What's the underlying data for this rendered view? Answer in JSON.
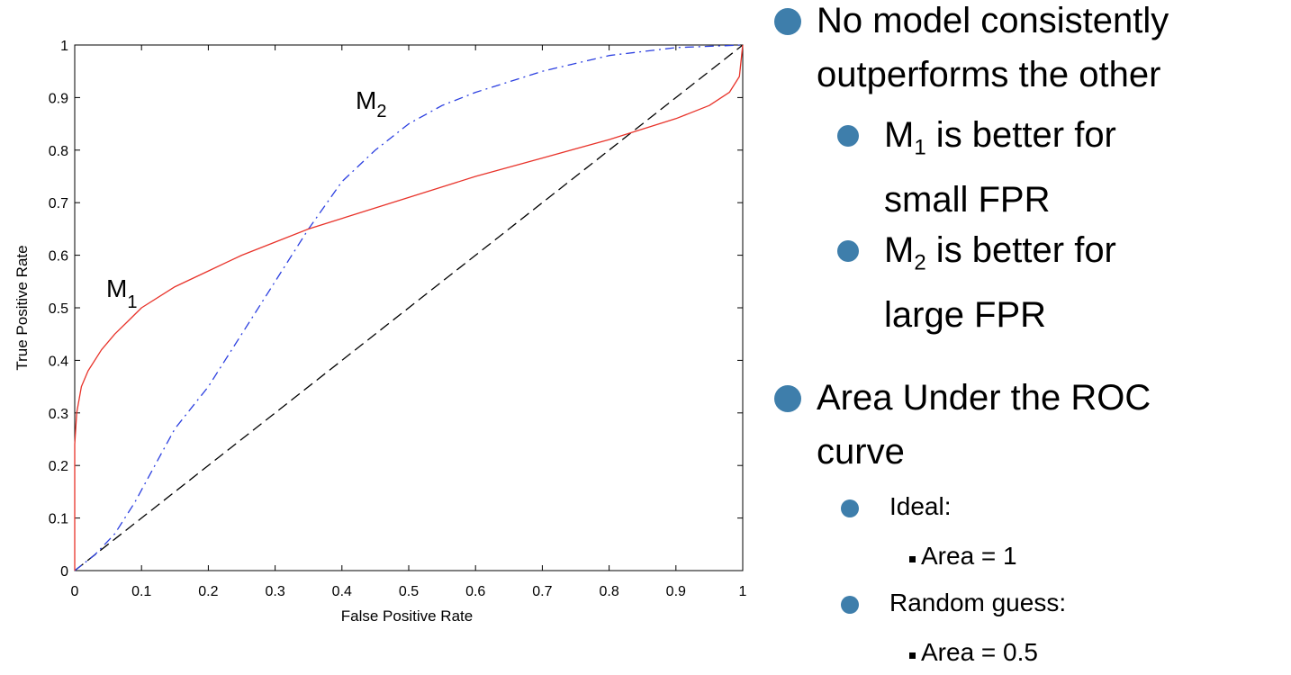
{
  "chart_data": {
    "type": "line",
    "xlabel": "False Positive Rate",
    "ylabel": "True Positive Rate",
    "xlim": [
      0,
      1
    ],
    "ylim": [
      0,
      1
    ],
    "xticks": [
      "0",
      "0.1",
      "0.2",
      "0.3",
      "0.4",
      "0.5",
      "0.6",
      "0.7",
      "0.8",
      "0.9",
      "1"
    ],
    "yticks": [
      "0",
      "0.1",
      "0.2",
      "0.3",
      "0.4",
      "0.5",
      "0.6",
      "0.7",
      "0.8",
      "0.9",
      "1"
    ],
    "grid": false,
    "series": [
      {
        "label_main": "M",
        "label_sub": "1",
        "color": "#e8332a",
        "style": "solid",
        "x": [
          0,
          0,
          0.003,
          0.01,
          0.02,
          0.04,
          0.06,
          0.08,
          0.1,
          0.15,
          0.2,
          0.25,
          0.3,
          0.35,
          0.4,
          0.5,
          0.6,
          0.7,
          0.8,
          0.9,
          0.95,
          0.98,
          0.995,
          1
        ],
        "y": [
          0,
          0.24,
          0.3,
          0.35,
          0.38,
          0.42,
          0.45,
          0.475,
          0.5,
          0.54,
          0.57,
          0.6,
          0.625,
          0.65,
          0.67,
          0.71,
          0.75,
          0.785,
          0.82,
          0.86,
          0.885,
          0.91,
          0.94,
          1.0
        ]
      },
      {
        "label_main": "M",
        "label_sub": "2",
        "color": "#2b3fe0",
        "style": "dashdot",
        "x": [
          0,
          0.03,
          0.06,
          0.09,
          0.12,
          0.15,
          0.2,
          0.25,
          0.3,
          0.35,
          0.4,
          0.45,
          0.5,
          0.55,
          0.6,
          0.7,
          0.8,
          0.9,
          1
        ],
        "y": [
          0,
          0.03,
          0.07,
          0.13,
          0.2,
          0.27,
          0.35,
          0.45,
          0.55,
          0.65,
          0.74,
          0.8,
          0.85,
          0.885,
          0.91,
          0.95,
          0.98,
          0.995,
          1.0
        ]
      },
      {
        "color": "#000000",
        "style": "dashed",
        "x": [
          0,
          1
        ],
        "y": [
          0,
          1
        ]
      }
    ]
  },
  "bullets": {
    "b1": "No model consistently outperforms the other",
    "b2_pre": "M",
    "b2_sub": "1",
    "b2_line1": " is better for",
    "b2_line2": "small FPR",
    "b3_pre": "M",
    "b3_sub": "2",
    "b3_line1": " is better for",
    "b3_line2": "large FPR",
    "b4": "Area Under the ROC curve",
    "b5": "Ideal:",
    "b6": "Area = 1",
    "b7": "Random guess:",
    "b8": "Area = 0.5"
  }
}
